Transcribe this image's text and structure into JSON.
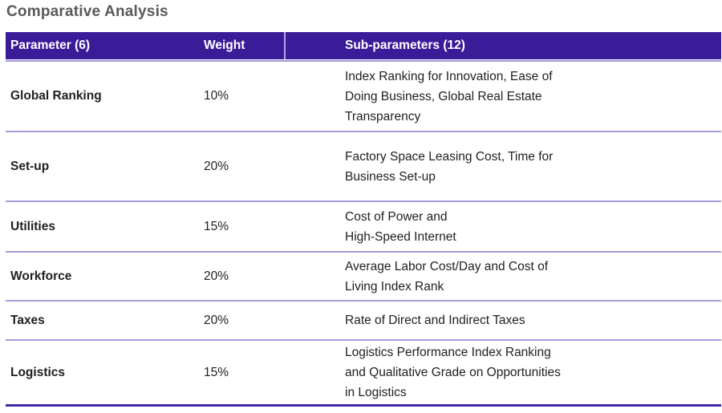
{
  "title": "Comparative Analysis",
  "table": {
    "header": {
      "parameter": "Parameter (6)",
      "weight": "Weight",
      "sub_parameters": "Sub-parameters (12)"
    },
    "rows": [
      {
        "parameter": "Global Ranking",
        "weight": "10%",
        "sub_parameters": "Index Ranking for Innovation, Ease of\nDoing Business, Global Real Estate\nTransparency"
      },
      {
        "parameter": "Set-up",
        "weight": "20%",
        "sub_parameters": "Factory Space Leasing Cost, Time for\nBusiness Set-up"
      },
      {
        "parameter": "Utilities",
        "weight": "15%",
        "sub_parameters": "Cost of Power and\nHigh-Speed Internet"
      },
      {
        "parameter": "Workforce",
        "weight": "20%",
        "sub_parameters": "Average Labor Cost/Day and Cost of\nLiving Index Rank"
      },
      {
        "parameter": "Taxes",
        "weight": "20%",
        "sub_parameters": "Rate of Direct and Indirect Taxes"
      },
      {
        "parameter": "Logistics",
        "weight": "15%",
        "sub_parameters": "Logistics Performance Index Ranking\nand Qualitative Grade on Opportunities\nin Logistics"
      }
    ]
  },
  "colors": {
    "header_background": "#3A1C99",
    "header_text": "#FFFFFF",
    "header_divider": "#B5A7E3",
    "row_divider": "#A89BD8",
    "bottom_border": "#4327AB",
    "title_text": "#595959",
    "body_text": "#212121"
  }
}
